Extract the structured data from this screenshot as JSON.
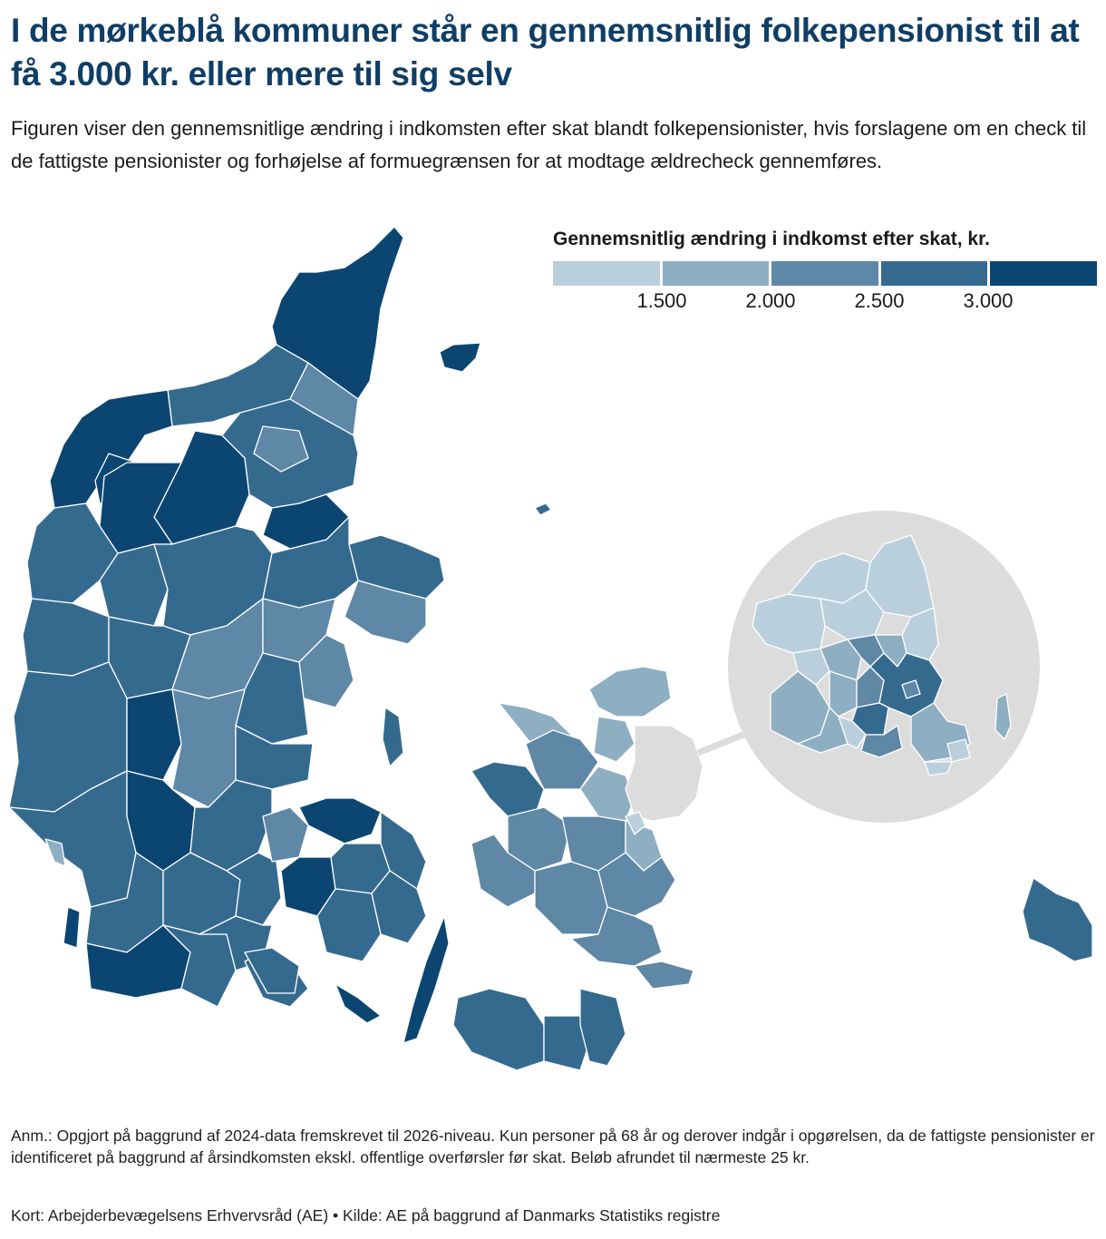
{
  "title": "I de mørkeblå kommuner står en gennemsnitlig folkepensionist til at få 3.000 kr. eller mere til sig selv",
  "subtitle": "Figuren viser den gennemsnitlige ændring i indkomsten efter skat blandt folkepensionister, hvis forslagene om en check til de fattigste pensionister og forhøjelse af formuegrænsen for at modtage ældrecheck gennemføres.",
  "legend": {
    "title": "Gennemsnitlig ændring i indkomst efter skat, kr.",
    "ticks": [
      "1.500",
      "2.000",
      "2.500",
      "3.000"
    ],
    "colors": [
      "#b9d0dc",
      "#8eaec2",
      "#5f87a6",
      "#356a8f",
      "#0b4672"
    ]
  },
  "colors": {
    "title": "#0f3e66",
    "inset_background": "#dcdcdc"
  },
  "note": "Anm.: Opgjort på baggrund af 2024-data fremskrevet til 2026-niveau. Kun personer på 68 år og derover indgår i opgørelsen, da de fattigste pensionister er identificeret på baggrund af årsindkomsten ekskl. offentlige overførsler før skat. Beløb afrundet til nærmeste 25 kr.",
  "source": "Kort: Arbejderbevægelsens Erhvervsråd (AE) • Kilde: AE på baggrund af Danmarks Statistiks registre"
}
